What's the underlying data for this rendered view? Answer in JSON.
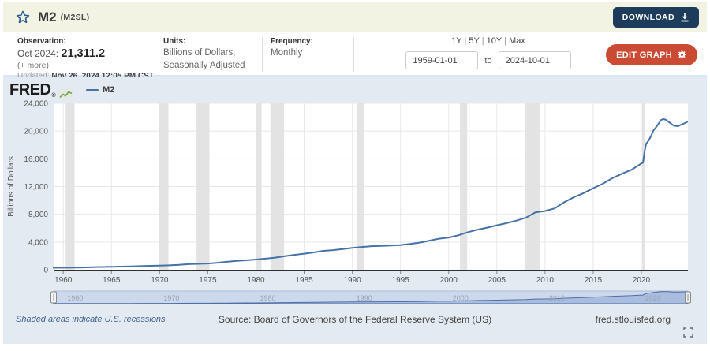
{
  "header": {
    "title": "M2",
    "series_id": "(M2SL)",
    "download_label": "DOWNLOAD"
  },
  "meta": {
    "observation_label": "Observation:",
    "observation_date": "Oct 2024:",
    "observation_value": "21,311.2",
    "more_label": "(+ more)",
    "updated_label": "Updated:",
    "updated_value": "Nov 26, 2024 12:05 PM CST",
    "units_label": "Units:",
    "units_line1": "Billions of Dollars,",
    "units_line2": "Seasonally Adjusted",
    "frequency_label": "Frequency:",
    "frequency_value": "Monthly",
    "range_presets": [
      "1Y",
      "5Y",
      "10Y",
      "Max"
    ],
    "date_start": "1959-01-01",
    "date_to_label": "to",
    "date_end": "2024-10-01",
    "edit_graph_label": "EDIT GRAPH"
  },
  "chart": {
    "logo": "FRED",
    "logo_mark": "®",
    "legend_label": "M2"
  },
  "footer": {
    "recession_note": "Shaded areas indicate U.S. recessions.",
    "source": "Source: Board of Governors of the Federal Reserve System (US)",
    "site": "fred.stlouisfed.org"
  },
  "colors": {
    "header_bg": "#f2f3e2",
    "download_btn": "#1d3c5c",
    "edit_btn": "#cb4a33",
    "panel_bg": "#e4eaf2",
    "plot_bg": "#ffffff",
    "line": "#4572a7",
    "recession_band": "#e3e3e3",
    "grid": "#e8e8e8",
    "axis_line": "#2f2f2f",
    "tick_label": "#555555",
    "nav_bg": "#ccd8eb",
    "nav_border": "#aebdd4",
    "nav_area_fill": "#9fb4da",
    "nav_area_line": "#4f6fa8",
    "nav_label": "#9aa3b5",
    "link_blue": "#42648c"
  },
  "chart_data": {
    "type": "line",
    "title": "M2",
    "xlabel": "",
    "ylabel": "Billions of Dollars",
    "legend": [
      "M2"
    ],
    "grid": true,
    "xlim": [
      1959.0,
      2024.83
    ],
    "ylim": [
      0,
      24000
    ],
    "x_ticks": [
      1960,
      1965,
      1970,
      1975,
      1980,
      1985,
      1990,
      1995,
      2000,
      2005,
      2010,
      2015,
      2020
    ],
    "y_ticks": [
      0,
      4000,
      8000,
      12000,
      16000,
      20000,
      24000
    ],
    "recessions": [
      [
        1960.25,
        1961.17
      ],
      [
        1969.92,
        1970.92
      ],
      [
        1973.83,
        1975.17
      ],
      [
        1980.0,
        1980.58
      ],
      [
        1981.5,
        1982.92
      ],
      [
        1990.5,
        1991.25
      ],
      [
        2001.17,
        2001.92
      ],
      [
        2007.92,
        2009.5
      ],
      [
        2020.08,
        2020.33
      ]
    ],
    "navigator_labels": [
      1960,
      1970,
      1980,
      1990,
      2000,
      2010,
      2020
    ],
    "series": [
      {
        "name": "M2",
        "x": [
          1959,
          1960,
          1961,
          1962,
          1963,
          1964,
          1965,
          1966,
          1967,
          1968,
          1969,
          1970,
          1971,
          1972,
          1973,
          1974,
          1975,
          1976,
          1977,
          1978,
          1979,
          1980,
          1981,
          1982,
          1983,
          1984,
          1985,
          1986,
          1987,
          1988,
          1989,
          1990,
          1991,
          1992,
          1993,
          1994,
          1995,
          1996,
          1997,
          1998,
          1999,
          2000,
          2001,
          2002,
          2003,
          2004,
          2005,
          2006,
          2007,
          2008,
          2009,
          2010,
          2011,
          2012,
          2013,
          2014,
          2015,
          2016,
          2017,
          2018,
          2019,
          2020.0,
          2020.17,
          2020.33,
          2020.5,
          2020.75,
          2021.0,
          2021.25,
          2021.5,
          2021.75,
          2022.0,
          2022.25,
          2022.5,
          2022.75,
          2023.0,
          2023.25,
          2023.5,
          2023.83,
          2024.0,
          2024.25,
          2024.5,
          2024.75
        ],
        "values": [
          287,
          298,
          312,
          335,
          362,
          393,
          424,
          459,
          480,
          525,
          567,
          589,
          633,
          710,
          802,
          856,
          902,
          1016,
          1152,
          1270,
          1366,
          1474,
          1599,
          1756,
          1952,
          2154,
          2316,
          2502,
          2732,
          2832,
          2994,
          3158,
          3290,
          3401,
          3444,
          3493,
          3559,
          3733,
          3918,
          4199,
          4476,
          4654,
          4972,
          5427,
          5779,
          6072,
          6413,
          6722,
          7075,
          7491,
          8271,
          8478,
          8846,
          9743,
          10469,
          11060,
          11761,
          12414,
          13212,
          13850,
          14434,
          15330,
          15450,
          17020,
          18180,
          18620,
          19284,
          20100,
          20500,
          21000,
          21550,
          21740,
          21660,
          21400,
          21160,
          20880,
          20750,
          20700,
          20850,
          20980,
          21150,
          21311
        ]
      }
    ]
  }
}
